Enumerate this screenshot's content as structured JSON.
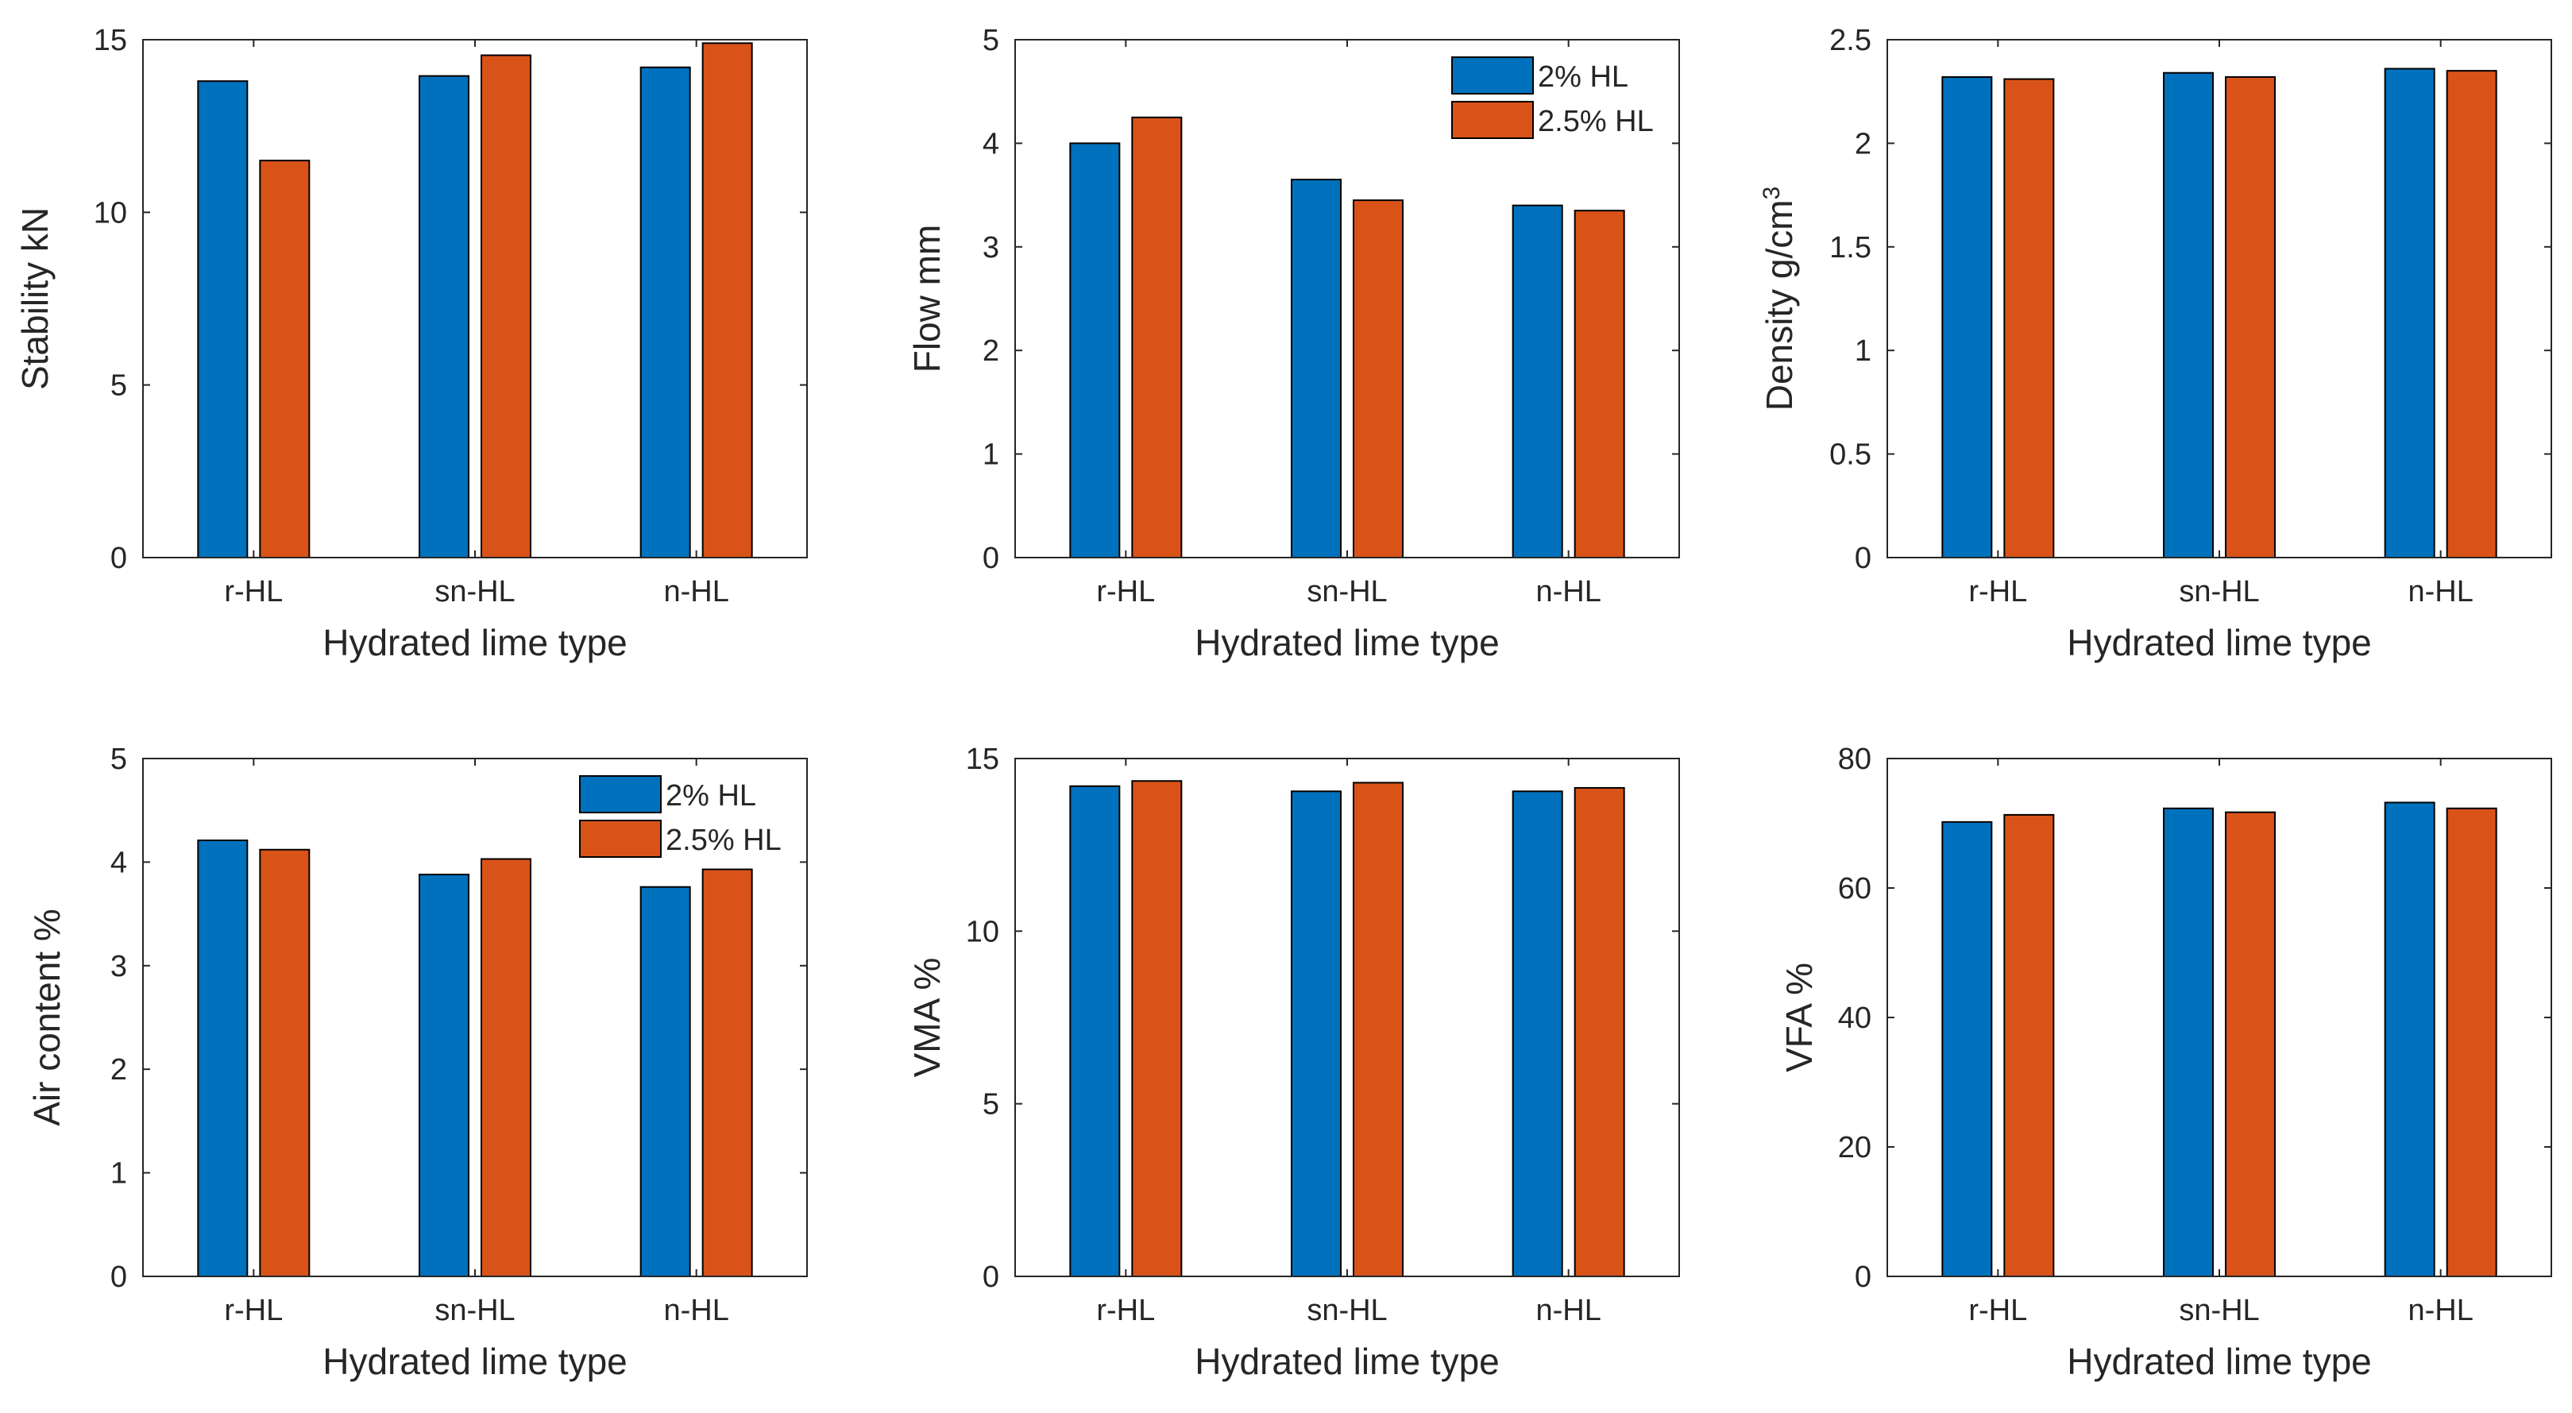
{
  "colors": {
    "series_1": "#0072BD",
    "series_2": "#D95319",
    "axis": "#262626",
    "bar_edge": "#000000"
  },
  "chart_data": [
    {
      "type": "bar",
      "categories": [
        "r-HL",
        "sn-HL",
        "n-HL"
      ],
      "series": [
        {
          "name": "2% HL",
          "values": [
            13.8,
            13.95,
            14.2
          ]
        },
        {
          "name": "2.5% HL",
          "values": [
            11.5,
            14.55,
            14.9
          ]
        }
      ],
      "xlabel": "Hydrated lime type",
      "ylabel": "Stability kN",
      "ylim": [
        0,
        15
      ],
      "yticks": [
        0,
        5,
        10,
        15
      ],
      "grid": false,
      "legend": null
    },
    {
      "type": "bar",
      "categories": [
        "r-HL",
        "sn-HL",
        "n-HL"
      ],
      "series": [
        {
          "name": "2% HL",
          "values": [
            4.0,
            3.65,
            3.4
          ]
        },
        {
          "name": "2.5% HL",
          "values": [
            4.25,
            3.45,
            3.35
          ]
        }
      ],
      "xlabel": "Hydrated lime type",
      "ylabel": "Flow mm",
      "ylim": [
        0,
        5
      ],
      "yticks": [
        0,
        1,
        2,
        3,
        4,
        5
      ],
      "grid": false,
      "legend": "top-right"
    },
    {
      "type": "bar",
      "categories": [
        "r-HL",
        "sn-HL",
        "n-HL"
      ],
      "series": [
        {
          "name": "2% HL",
          "values": [
            2.32,
            2.34,
            2.36
          ]
        },
        {
          "name": "2.5% HL",
          "values": [
            2.31,
            2.32,
            2.35
          ]
        }
      ],
      "xlabel": "Hydrated lime type",
      "ylabel": "Density g/cm",
      "ylabel_superscript": "3",
      "ylim": [
        0,
        2.5
      ],
      "yticks": [
        0,
        0.5,
        1,
        1.5,
        2,
        2.5
      ],
      "grid": false,
      "legend": null
    },
    {
      "type": "bar",
      "categories": [
        "r-HL",
        "sn-HL",
        "n-HL"
      ],
      "series": [
        {
          "name": "2% HL",
          "values": [
            4.21,
            3.88,
            3.76
          ]
        },
        {
          "name": "2.5% HL",
          "values": [
            4.12,
            4.03,
            3.93
          ]
        }
      ],
      "xlabel": "Hydrated lime type",
      "ylabel": "Air content %",
      "ylim": [
        0,
        5
      ],
      "yticks": [
        0,
        1,
        2,
        3,
        4,
        5
      ],
      "grid": false,
      "legend": "top-right"
    },
    {
      "type": "bar",
      "categories": [
        "r-HL",
        "sn-HL",
        "n-HL"
      ],
      "series": [
        {
          "name": "2% HL",
          "values": [
            14.2,
            14.05,
            14.05
          ]
        },
        {
          "name": "2.5% HL",
          "values": [
            14.35,
            14.3,
            14.15
          ]
        }
      ],
      "xlabel": "Hydrated lime type",
      "ylabel": "VMA %",
      "ylim": [
        0,
        15
      ],
      "yticks": [
        0,
        5,
        10,
        15
      ],
      "grid": false,
      "legend": null
    },
    {
      "type": "bar",
      "categories": [
        "r-HL",
        "sn-HL",
        "n-HL"
      ],
      "series": [
        {
          "name": "2% HL",
          "values": [
            70.2,
            72.3,
            73.2
          ]
        },
        {
          "name": "2.5% HL",
          "values": [
            71.3,
            71.7,
            72.3
          ]
        }
      ],
      "xlabel": "Hydrated lime type",
      "ylabel": "VFA %",
      "ylim": [
        0,
        80
      ],
      "yticks": [
        0,
        20,
        40,
        60,
        80
      ],
      "grid": false,
      "legend": null
    }
  ]
}
